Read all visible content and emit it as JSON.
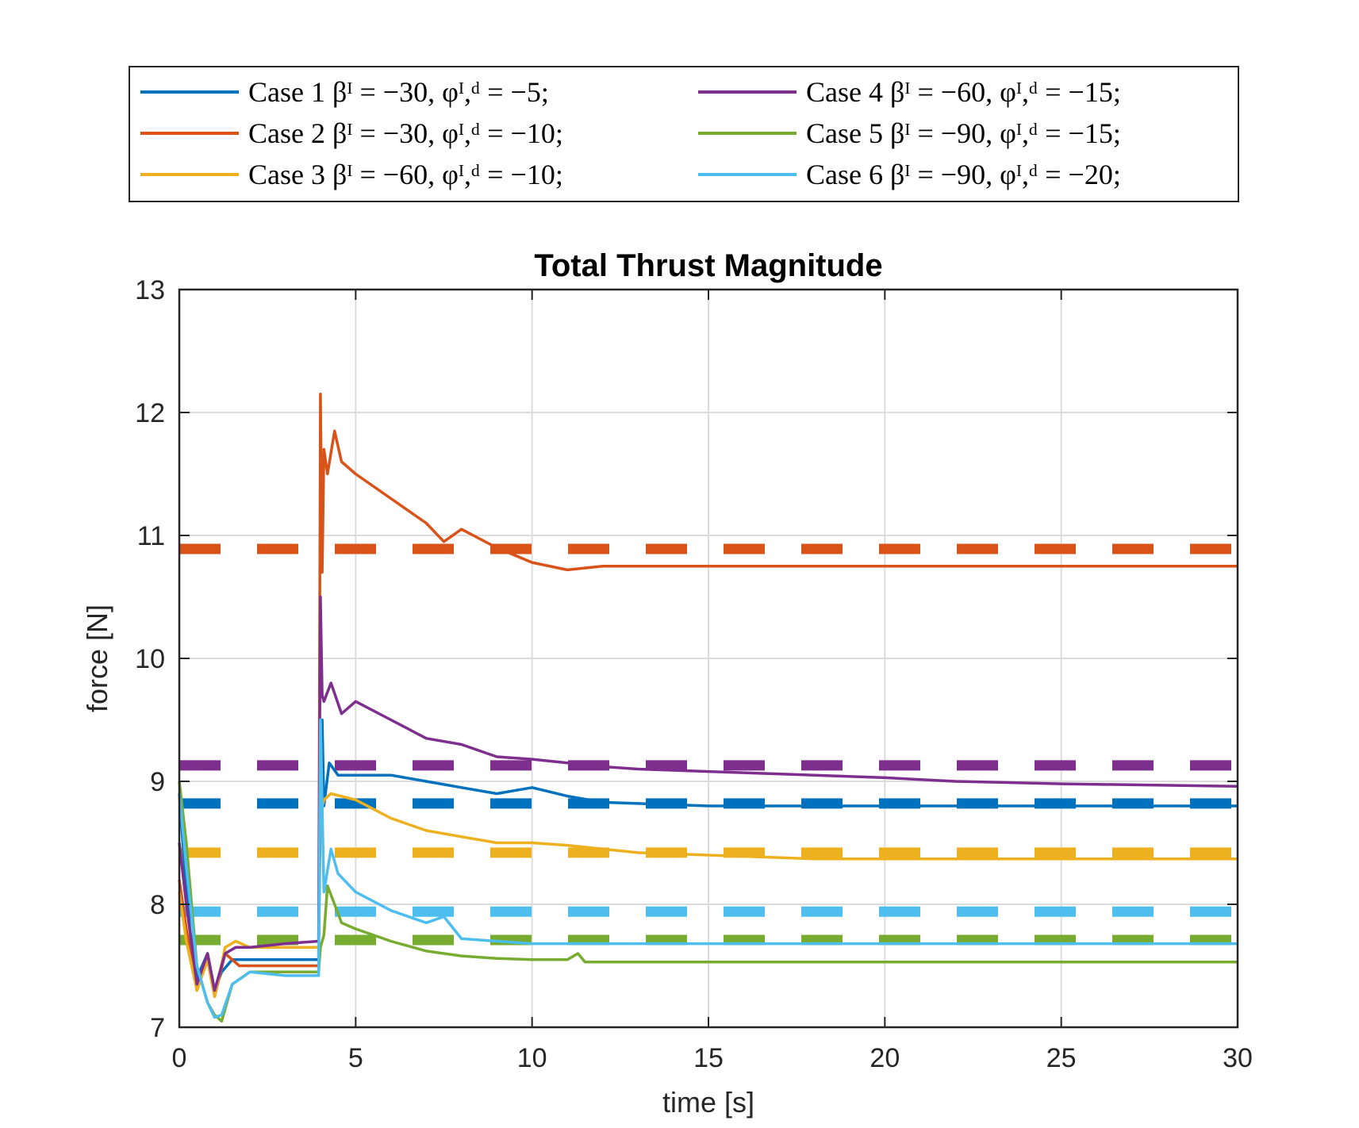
{
  "chart_data": {
    "type": "line",
    "title": "Total Thrust Magnitude",
    "xlabel": "time [s]",
    "ylabel": "force [N]",
    "xlim": [
      0,
      30
    ],
    "ylim": [
      7,
      13
    ],
    "xticks": [
      0,
      5,
      10,
      15,
      20,
      25,
      30
    ],
    "yticks": [
      7,
      8,
      9,
      10,
      11,
      12,
      13
    ],
    "grid": true,
    "legend_position": "top-outside",
    "series": [
      {
        "name": "Case 1",
        "legend_label": "Case 1 βᴵ = −30, φᴵ,ᵈ = −5;",
        "color": "#0072BD",
        "reference": 8.82,
        "x": [
          0,
          0.1,
          0.3,
          0.5,
          0.8,
          1.0,
          1.2,
          1.5,
          2.0,
          3.0,
          3.95,
          4.0,
          4.05,
          4.1,
          4.25,
          4.5,
          5,
          6,
          7,
          8,
          9,
          10,
          11,
          12,
          13,
          15,
          20,
          25,
          30
        ],
        "values": [
          8.9,
          8.5,
          7.8,
          7.4,
          7.6,
          7.3,
          7.45,
          7.55,
          7.55,
          7.55,
          7.55,
          8.8,
          9.5,
          8.8,
          9.15,
          9.05,
          9.05,
          9.05,
          9.0,
          8.95,
          8.9,
          8.95,
          8.88,
          8.83,
          8.82,
          8.8,
          8.8,
          8.8,
          8.8
        ]
      },
      {
        "name": "Case 2",
        "legend_label": "Case 2 βᴵ = −30, φᴵ,ᵈ = −10;",
        "color": "#D95319",
        "reference": 10.89,
        "x": [
          0,
          0.2,
          0.5,
          0.8,
          1.0,
          1.3,
          1.7,
          2.0,
          3.0,
          3.95,
          4.0,
          4.05,
          4.1,
          4.2,
          4.4,
          4.6,
          5,
          6,
          7,
          7.5,
          8,
          9,
          10,
          11,
          12,
          15,
          20,
          25,
          30
        ],
        "values": [
          8.2,
          7.8,
          7.3,
          7.55,
          7.25,
          7.6,
          7.5,
          7.5,
          7.5,
          7.5,
          12.15,
          10.7,
          11.7,
          11.5,
          11.85,
          11.6,
          11.5,
          11.3,
          11.1,
          10.95,
          11.05,
          10.9,
          10.78,
          10.72,
          10.75,
          10.75,
          10.75,
          10.75,
          10.75
        ]
      },
      {
        "name": "Case 3",
        "legend_label": "Case 3 βᴵ = −60, φᴵ,ᵈ = −10;",
        "color": "#EDB120",
        "reference": 8.42,
        "x": [
          0,
          0.2,
          0.5,
          0.8,
          1.0,
          1.3,
          1.6,
          2.0,
          3.0,
          3.95,
          4.0,
          4.05,
          4.1,
          4.3,
          5,
          6,
          7,
          8,
          9,
          10,
          11,
          12,
          13,
          15,
          18,
          20,
          25,
          30
        ],
        "values": [
          8.1,
          7.7,
          7.3,
          7.55,
          7.25,
          7.65,
          7.7,
          7.65,
          7.65,
          7.65,
          9.1,
          8.8,
          8.85,
          8.9,
          8.85,
          8.7,
          8.6,
          8.55,
          8.5,
          8.5,
          8.48,
          8.45,
          8.42,
          8.4,
          8.37,
          8.37,
          8.37,
          8.37
        ]
      },
      {
        "name": "Case 4",
        "legend_label": "Case 4 βᴵ = −60, φᴵ,ᵈ = −15;",
        "color": "#7E2F8E",
        "reference": 9.13,
        "x": [
          0,
          0.2,
          0.5,
          0.8,
          1.0,
          1.3,
          1.6,
          2.0,
          3.0,
          3.95,
          4.0,
          4.05,
          4.1,
          4.3,
          4.6,
          5,
          6,
          7,
          8,
          9,
          10,
          11,
          12,
          13,
          15,
          18,
          20,
          22,
          25,
          30
        ],
        "values": [
          8.5,
          8.0,
          7.35,
          7.6,
          7.3,
          7.6,
          7.65,
          7.65,
          7.68,
          7.7,
          10.5,
          9.7,
          9.65,
          9.8,
          9.55,
          9.65,
          9.5,
          9.35,
          9.3,
          9.2,
          9.18,
          9.15,
          9.12,
          9.1,
          9.08,
          9.05,
          9.03,
          9.0,
          8.98,
          8.96
        ]
      },
      {
        "name": "Case 5",
        "legend_label": "Case 5 βᴵ = −90, φᴵ,ᵈ = −15;",
        "color": "#77AC30",
        "reference": 7.71,
        "x": [
          0,
          0.2,
          0.5,
          0.8,
          1.0,
          1.2,
          1.5,
          2.0,
          3.0,
          3.95,
          4.0,
          4.1,
          4.2,
          4.4,
          4.6,
          5,
          6,
          7,
          8,
          9,
          10,
          11,
          11.3,
          11.5,
          12,
          15,
          20,
          25,
          30
        ],
        "values": [
          9.0,
          8.5,
          7.5,
          7.2,
          7.1,
          7.05,
          7.35,
          7.45,
          7.45,
          7.45,
          7.65,
          7.75,
          8.15,
          8.0,
          7.85,
          7.8,
          7.7,
          7.62,
          7.58,
          7.56,
          7.55,
          7.55,
          7.6,
          7.53,
          7.53,
          7.53,
          7.53,
          7.53,
          7.53
        ]
      },
      {
        "name": "Case 6",
        "legend_label": "Case 6 βᴵ = −90, φᴵ,ᵈ = −20;",
        "color": "#4DBEEE",
        "reference": 7.94,
        "x": [
          0,
          0.2,
          0.5,
          0.8,
          1.0,
          1.2,
          1.5,
          2.0,
          3.0,
          3.95,
          4.0,
          4.1,
          4.3,
          4.5,
          5,
          6,
          7,
          7.5,
          8,
          9,
          10,
          11,
          12,
          15,
          20,
          25,
          30
        ],
        "values": [
          8.9,
          8.3,
          7.5,
          7.2,
          7.08,
          7.1,
          7.35,
          7.45,
          7.42,
          7.42,
          9.5,
          8.1,
          8.45,
          8.25,
          8.1,
          7.95,
          7.85,
          7.9,
          7.72,
          7.7,
          7.68,
          7.68,
          7.68,
          7.68,
          7.68,
          7.68,
          7.68
        ]
      }
    ]
  }
}
